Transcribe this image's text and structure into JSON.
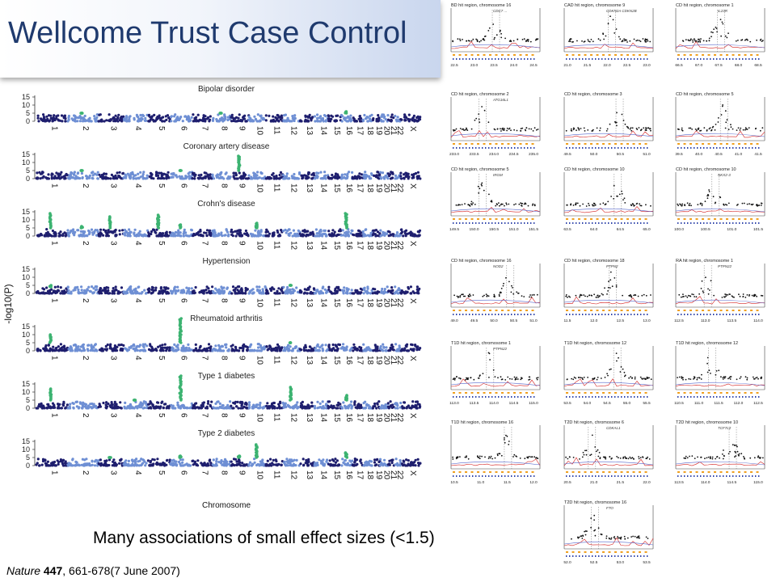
{
  "slide": {
    "title": "Wellcome Trust Case Control",
    "caption": "Many associations of small effect sizes (<1.5)",
    "citation": {
      "journal": "Nature",
      "volume": "447",
      "rest": ", 661-678(7 June 2007)"
    }
  },
  "colors": {
    "dark_blue": "#1e1e6e",
    "light_blue": "#6e8fd4",
    "hit_green": "#3cb371",
    "title_text": "#1f3a6e"
  },
  "manhattan": {
    "y_axis_label": "-log10(P)",
    "x_axis_label": "Chromosome",
    "y_ticks": [
      "0",
      "5",
      "10",
      "15"
    ],
    "chromosome_labels": [
      "1",
      "2",
      "3",
      "4",
      "5",
      "6",
      "7",
      "8",
      "9",
      "10",
      "11",
      "12",
      "13",
      "14",
      "15",
      "16",
      "17",
      "18",
      "19",
      "20",
      "21",
      "22",
      "X"
    ],
    "panels": [
      {
        "name": "Bipolar disorder",
        "hits": [
          {
            "chr": 2,
            "p": 5
          },
          {
            "chr": 8,
            "p": 5
          },
          {
            "chr": 16,
            "p": 6
          }
        ]
      },
      {
        "name": "Coronary artery disease",
        "hits": [
          {
            "chr": 9,
            "p": 14
          },
          {
            "chr": 2,
            "p": 5
          },
          {
            "chr": 6,
            "p": 5
          }
        ]
      },
      {
        "name": "Crohn's disease",
        "hits": [
          {
            "chr": 1,
            "p": 14
          },
          {
            "chr": 3,
            "p": 12
          },
          {
            "chr": 5,
            "p": 13
          },
          {
            "chr": 6,
            "p": 7
          },
          {
            "chr": 10,
            "p": 8
          },
          {
            "chr": 16,
            "p": 14
          },
          {
            "chr": 2,
            "p": 6
          }
        ]
      },
      {
        "name": "Hypertension",
        "hits": [
          {
            "chr": 1,
            "p": 4
          },
          {
            "chr": 12,
            "p": 5
          }
        ]
      },
      {
        "name": "Rheumatoid arthritis",
        "hits": [
          {
            "chr": 1,
            "p": 10
          },
          {
            "chr": 6,
            "p": 20
          },
          {
            "chr": 12,
            "p": 5
          }
        ]
      },
      {
        "name": "Type 1 diabetes",
        "hits": [
          {
            "chr": 1,
            "p": 12
          },
          {
            "chr": 6,
            "p": 20
          },
          {
            "chr": 12,
            "p": 13
          },
          {
            "chr": 16,
            "p": 8
          },
          {
            "chr": 4,
            "p": 5
          }
        ]
      },
      {
        "name": "Type 2 diabetes",
        "hits": [
          {
            "chr": 10,
            "p": 13
          },
          {
            "chr": 16,
            "p": 8
          },
          {
            "chr": 3,
            "p": 5
          },
          {
            "chr": 6,
            "p": 6
          },
          {
            "chr": 9,
            "p": 6
          }
        ]
      }
    ]
  },
  "regions": [
    {
      "title": "BD hit region, chromosome 16",
      "genes": "CDC7 ...",
      "xticks": [
        "22.5",
        "23.0",
        "23.5",
        "24.0",
        "24.5"
      ]
    },
    {
      "title": "CAD hit region, chromosome 9",
      "genes": "CDKN2A CDKN2B",
      "xticks": [
        "21.0",
        "21.5",
        "22.0",
        "22.5",
        "23.0"
      ]
    },
    {
      "title": "CD hit region, chromosome 1",
      "genes": "IL23R",
      "xticks": [
        "66.5",
        "67.0",
        "67.5",
        "68.0",
        "68.5"
      ]
    },
    {
      "title": "CD hit region, chromosome 2",
      "genes": "ATG16L1",
      "xticks": [
        "233.0",
        "233.5",
        "234.0",
        "234.5",
        "235.0"
      ]
    },
    {
      "title": "CD hit region, chromosome 3",
      "genes": "",
      "xticks": [
        "49.5",
        "50.0",
        "50.5",
        "51.0"
      ]
    },
    {
      "title": "CD hit region, chromosome 5",
      "genes": "",
      "xticks": [
        "39.5",
        "40.0",
        "40.5",
        "41.0",
        "41.5"
      ]
    },
    {
      "title": "CD hit region, chromosome 5",
      "genes": "IRGM",
      "xticks": [
        "149.5",
        "150.0",
        "150.5",
        "151.0",
        "151.5"
      ]
    },
    {
      "title": "CD hit region, chromosome 10",
      "genes": "",
      "xticks": [
        "63.5",
        "64.0",
        "64.5",
        "65.0"
      ]
    },
    {
      "title": "CD hit region, chromosome 10",
      "genes": "NKX2-3",
      "xticks": [
        "100.0",
        "100.5",
        "101.0",
        "101.5"
      ]
    },
    {
      "title": "CD hit region, chromosome 16",
      "genes": "NOD2",
      "xticks": [
        "49.0",
        "49.5",
        "50.0",
        "50.5",
        "51.0"
      ]
    },
    {
      "title": "CD hit region, chromosome 18",
      "genes": "PTPN2",
      "xticks": [
        "11.5",
        "12.0",
        "12.5",
        "13.0"
      ]
    },
    {
      "title": "RA hit region, chromosome 1",
      "genes": "PTPN22",
      "xticks": [
        "112.5",
        "113.0",
        "113.5",
        "114.0"
      ]
    },
    {
      "title": "T1D hit region, chromosome 1",
      "genes": "PTPN22",
      "xticks": [
        "113.0",
        "113.5",
        "114.0",
        "114.5",
        "115.0"
      ]
    },
    {
      "title": "T1D hit region, chromosome 12",
      "genes": "",
      "xticks": [
        "53.5",
        "54.0",
        "54.5",
        "55.0",
        "55.5"
      ]
    },
    {
      "title": "T1D hit region, chromosome 12",
      "genes": "",
      "xticks": [
        "110.5",
        "111.0",
        "111.5",
        "112.0",
        "112.5"
      ]
    },
    {
      "title": "T1D hit region, chromosome 16",
      "genes": "",
      "xticks": [
        "10.5",
        "11.0",
        "11.5",
        "12.0"
      ]
    },
    {
      "title": "T2D hit region, chromosome 6",
      "genes": "CDKAL1",
      "xticks": [
        "20.5",
        "21.0",
        "21.5",
        "22.0"
      ]
    },
    {
      "title": "T2D hit region, chromosome 10",
      "genes": "TCF7L2",
      "xticks": [
        "113.5",
        "114.0",
        "114.5",
        "115.0"
      ]
    },
    {
      "title": "T2D hit region, chromosome 16",
      "genes": "FTO",
      "xticks": [
        "52.0",
        "52.5",
        "53.0",
        "53.5"
      ]
    }
  ]
}
